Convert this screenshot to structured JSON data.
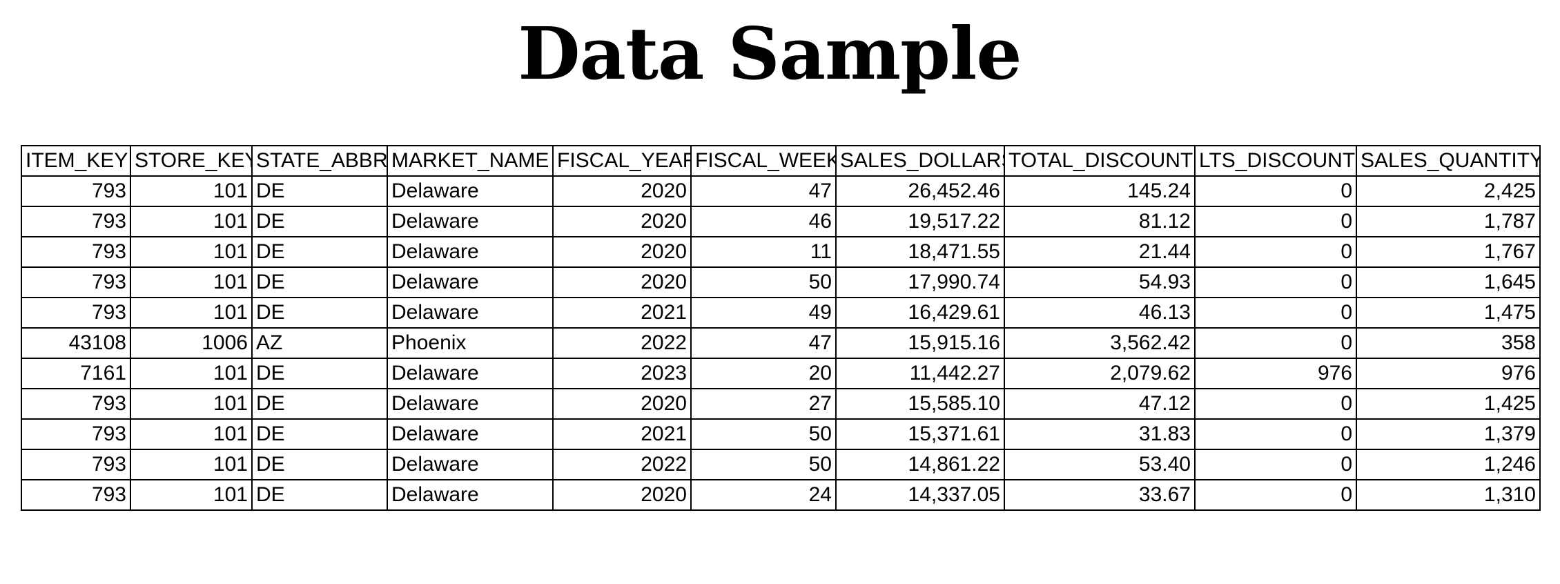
{
  "title": "Data Sample",
  "table": {
    "columns": [
      "ITEM_KEY",
      "STORE_KEY",
      "STATE_ABBR",
      "MARKET_NAME",
      "FISCAL_YEAR",
      "FISCAL_WEEK",
      "SALES_DOLLARS",
      "TOTAL_DISCOUNT",
      "LTS_DISCOUNT",
      "SALES_QUANTITY"
    ],
    "rows": [
      [
        "793",
        "101",
        "DE",
        "Delaware",
        "2020",
        "47",
        "26,452.46",
        "145.24",
        "0",
        "2,425"
      ],
      [
        "793",
        "101",
        "DE",
        "Delaware",
        "2020",
        "46",
        "19,517.22",
        "81.12",
        "0",
        "1,787"
      ],
      [
        "793",
        "101",
        "DE",
        "Delaware",
        "2020",
        "11",
        "18,471.55",
        "21.44",
        "0",
        "1,767"
      ],
      [
        "793",
        "101",
        "DE",
        "Delaware",
        "2020",
        "50",
        "17,990.74",
        "54.93",
        "0",
        "1,645"
      ],
      [
        "793",
        "101",
        "DE",
        "Delaware",
        "2021",
        "49",
        "16,429.61",
        "46.13",
        "0",
        "1,475"
      ],
      [
        "43108",
        "1006",
        "AZ",
        "Phoenix",
        "2022",
        "47",
        "15,915.16",
        "3,562.42",
        "0",
        "358"
      ],
      [
        "7161",
        "101",
        "DE",
        "Delaware",
        "2023",
        "20",
        "11,442.27",
        "2,079.62",
        "976",
        "976"
      ],
      [
        "793",
        "101",
        "DE",
        "Delaware",
        "2020",
        "27",
        "15,585.10",
        "47.12",
        "0",
        "1,425"
      ],
      [
        "793",
        "101",
        "DE",
        "Delaware",
        "2021",
        "50",
        "15,371.61",
        "31.83",
        "0",
        "1,379"
      ],
      [
        "793",
        "101",
        "DE",
        "Delaware",
        "2022",
        "50",
        "14,861.22",
        "53.40",
        "0",
        "1,246"
      ],
      [
        "793",
        "101",
        "DE",
        "Delaware",
        "2020",
        "24",
        "14,337.05",
        "33.67",
        "0",
        "1,310"
      ]
    ]
  }
}
